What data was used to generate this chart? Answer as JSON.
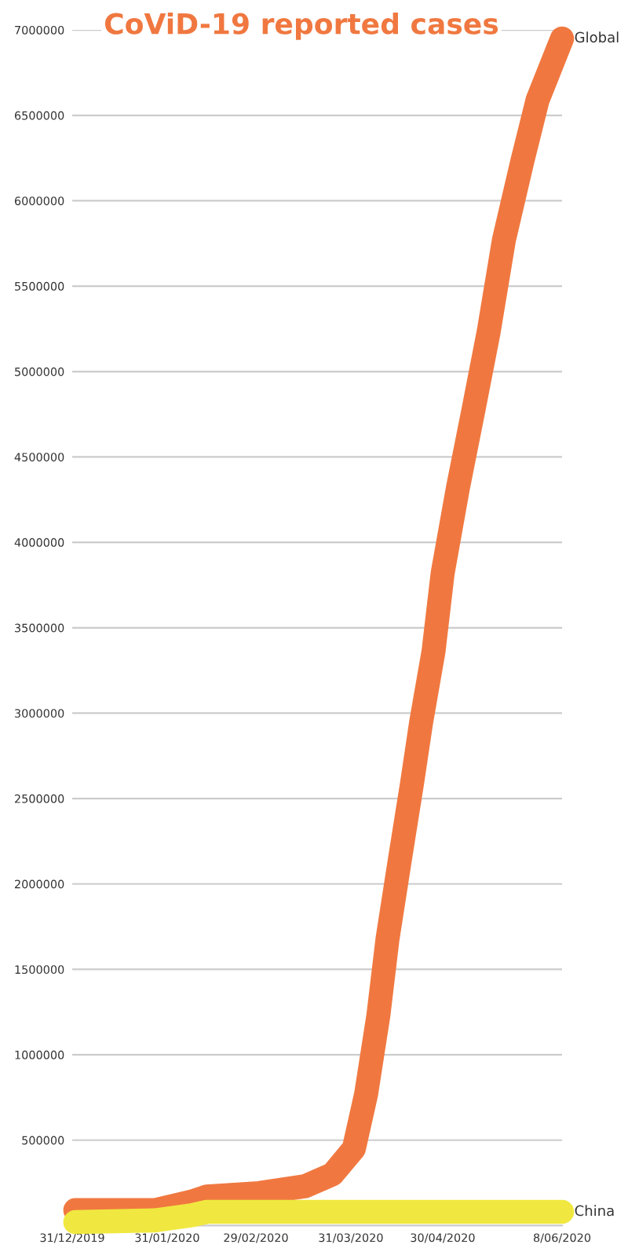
{
  "chart_data": {
    "type": "line",
    "title": "CoViD-19 reported cases",
    "x": [
      "2020-01-01",
      "2020-01-27",
      "2020-02-08",
      "2020-02-13",
      "2020-03-01",
      "2020-03-16",
      "2020-03-25",
      "2020-04-01",
      "2020-04-05",
      "2020-04-09",
      "2020-04-12",
      "2020-04-16",
      "2020-04-20",
      "2020-04-23",
      "2020-04-27",
      "2020-04-30",
      "2020-05-05",
      "2020-05-10",
      "2020-05-15",
      "2020-05-20",
      "2020-05-26",
      "2020-05-31",
      "2020-06-08"
    ],
    "series": [
      {
        "name": "Global",
        "color": "#f07840",
        "values": [
          90000,
          90000,
          140000,
          170000,
          190000,
          230000,
          300000,
          450000,
          770000,
          1230000,
          1680000,
          2140000,
          2590000,
          2950000,
          3360000,
          3820000,
          4320000,
          4770000,
          5230000,
          5770000,
          6230000,
          6590000,
          6950000
        ]
      },
      {
        "name": "China",
        "color": "#f0e840",
        "x": [
          "2020-01-01",
          "2020-01-27",
          "2020-02-08",
          "2020-02-13",
          "2020-03-01",
          "2020-06-08"
        ],
        "values": [
          20000,
          30000,
          60000,
          80000,
          80000,
          80000
        ]
      }
    ],
    "ylim": [
      0,
      7000000
    ],
    "yticks": [
      500000,
      1000000,
      1500000,
      2000000,
      2500000,
      3000000,
      3500000,
      4000000,
      4500000,
      5000000,
      5500000,
      6000000,
      6500000,
      7000000
    ],
    "xlim": [
      "2019-12-31",
      "2020-06-08"
    ],
    "xticks": [
      {
        "value": "2019-12-31",
        "label": "31/12/2019"
      },
      {
        "value": "2020-01-31",
        "label": "31/01/2020"
      },
      {
        "value": "2020-02-29",
        "label": "29/02/2020"
      },
      {
        "value": "2020-03-31",
        "label": "31/03/2020"
      },
      {
        "value": "2020-04-30",
        "label": "30/04/2020"
      },
      {
        "value": "2020-06-08",
        "label": "8/06/2020"
      }
    ],
    "grid": "y",
    "legend": false,
    "line_style": "solid"
  }
}
